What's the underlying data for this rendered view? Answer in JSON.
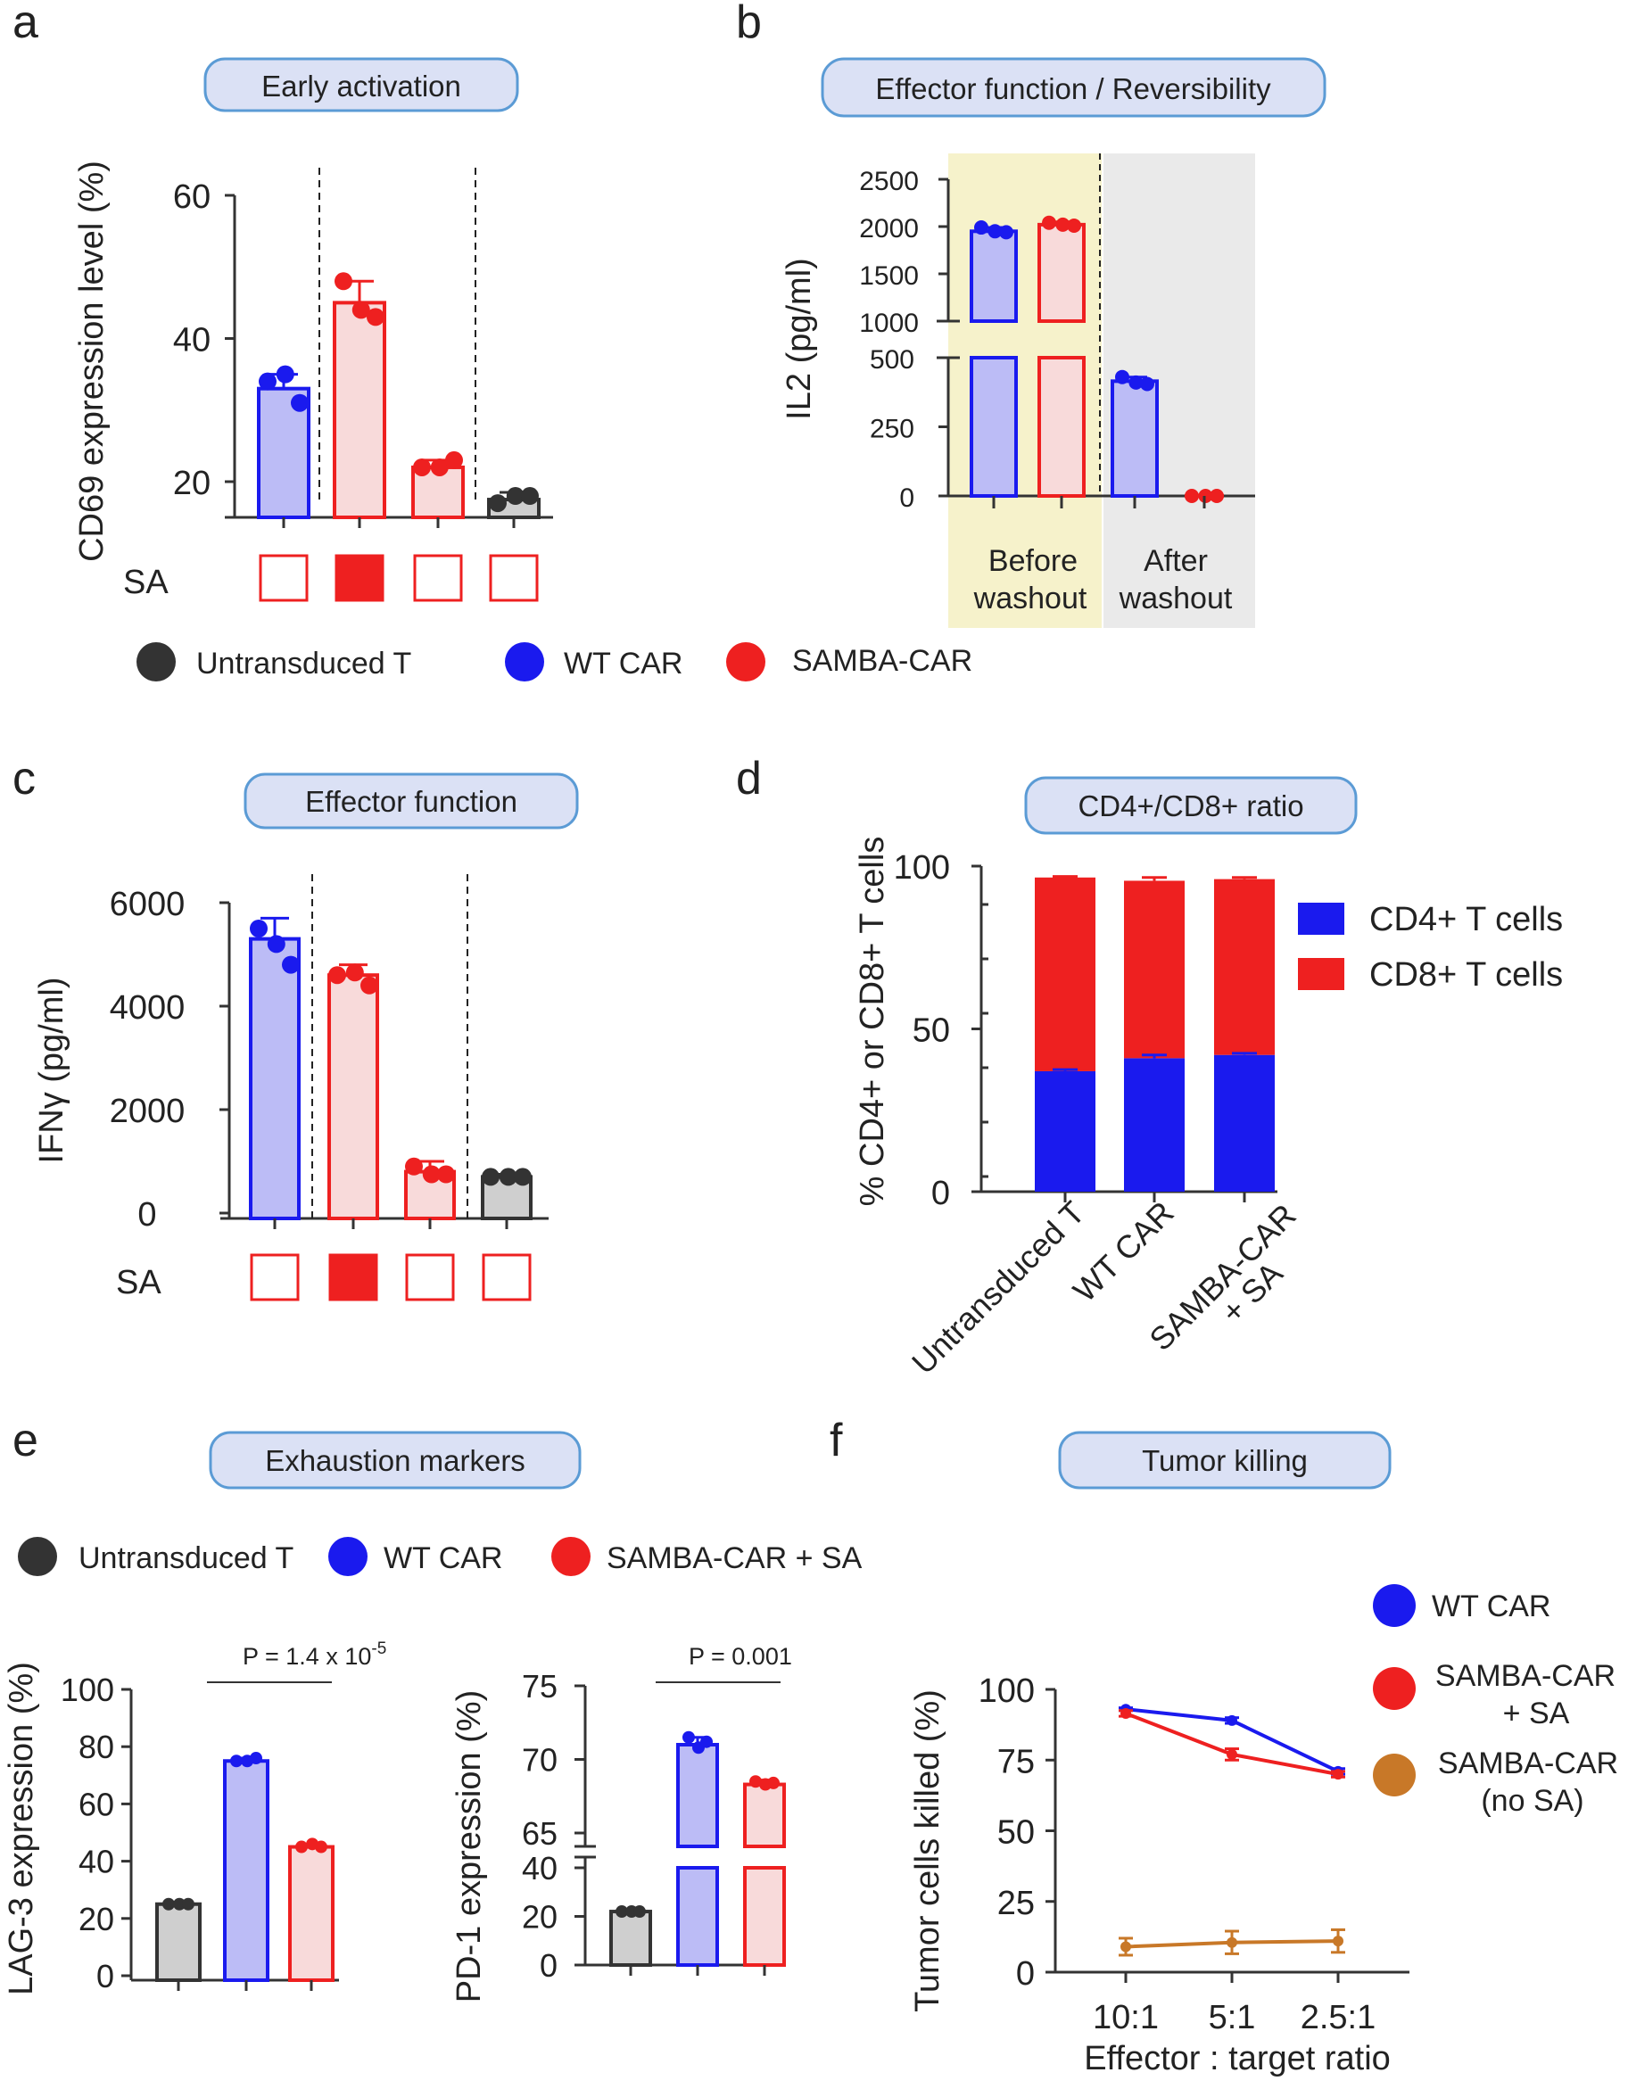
{
  "colors": {
    "blue": "#1a1aee",
    "blue_fill": "#bcbcf6",
    "red": "#ee2020",
    "red_fill": "#f8dada",
    "dark": "#333333",
    "gray_fill": "#cfcfcf",
    "orange": "#c87828",
    "header_fill": "#dbe1f5",
    "header_stroke": "#5b9bd5",
    "before_shade": "#f6f2cb",
    "after_shade": "#eaeaea"
  },
  "panels": {
    "a": {
      "letter": "a",
      "header": "Early activation",
      "ylabel": "CD69 expression level (%)",
      "ticks": [
        "20",
        "40",
        "60"
      ],
      "sa_label": "SA",
      "legend": [
        "Untransduced T",
        "WT CAR",
        "SAMBA-CAR"
      ]
    },
    "b": {
      "letter": "b",
      "header": "Effector function / Reversibility",
      "ylabel": "IL2 (pg/ml)",
      "ticks_upper": [
        "1000",
        "1500",
        "2000",
        "2500"
      ],
      "ticks_lower": [
        "0",
        "250",
        "500"
      ],
      "group1": [
        "Before",
        "washout"
      ],
      "group2": [
        "After",
        "washout"
      ]
    },
    "c": {
      "letter": "c",
      "header": "Effector function",
      "ylabel": "IFNγ (pg/ml)",
      "ticks": [
        "0",
        "2000",
        "4000",
        "6000"
      ],
      "sa_label": "SA"
    },
    "d": {
      "letter": "d",
      "header": "CD4+/CD8+ ratio",
      "ylabel": "% CD4+ or CD8+ T cells",
      "ticks": [
        "0",
        "50",
        "100"
      ],
      "categories": [
        "Untransduced T",
        "WT CAR",
        "SAMBA-CAR",
        "+ SA"
      ],
      "legend": [
        "CD4+ T cells",
        "CD8+ T cells"
      ]
    },
    "e": {
      "letter": "e",
      "header": "Exhaustion markers",
      "legend": [
        "Untransduced T",
        "WT CAR",
        "SAMBA-CAR + SA"
      ],
      "lag3_ylabel": "LAG-3 expression (%)",
      "lag3_ticks": [
        "0",
        "20",
        "40",
        "60",
        "80",
        "100"
      ],
      "lag3_p": "P = 1.4 x 10",
      "lag3_p_exp": "-5",
      "pd1_ylabel": "PD-1 expression (%)",
      "pd1_ticks_upper": [
        "65",
        "70",
        "75"
      ],
      "pd1_ticks_lower": [
        "0",
        "20",
        "40"
      ],
      "pd1_p": "P = 0.001"
    },
    "f": {
      "letter": "f",
      "header": "Tumor killing",
      "ylabel": "Tumor cells killed (%)",
      "xlabel": "Effector : target ratio",
      "ticks": [
        "0",
        "25",
        "50",
        "75",
        "100"
      ],
      "legend": [
        [
          "WT CAR"
        ],
        [
          "SAMBA-CAR",
          "+ SA"
        ],
        [
          "SAMBA-CAR",
          "(no SA)"
        ]
      ]
    }
  },
  "chart_data": [
    {
      "panel": "a",
      "type": "bar",
      "title": "Early activation",
      "ylabel": "CD69 expression level (%)",
      "ylim": [
        15,
        60
      ],
      "categories": [
        "WT CAR",
        "SAMBA-CAR + SA",
        "SAMBA-CAR (no SA)",
        "Untransduced T"
      ],
      "sa": [
        false,
        true,
        false,
        false
      ],
      "values": [
        33,
        45,
        22,
        17.5
      ],
      "errors": [
        2,
        3,
        1,
        1
      ],
      "points": [
        [
          34,
          35,
          31
        ],
        [
          48,
          44,
          43
        ],
        [
          22,
          22,
          23
        ],
        [
          17,
          18,
          18
        ]
      ]
    },
    {
      "panel": "b",
      "type": "bar",
      "title": "Effector function / Reversibility",
      "ylabel": "IL2 (pg/ml)",
      "ylim": [
        0,
        2500
      ],
      "axis_break": [
        500,
        1000
      ],
      "groups": [
        "Before washout",
        "After washout"
      ],
      "categories": [
        "WT CAR (before)",
        "SAMBA-CAR (before)",
        "WT CAR (after)",
        "SAMBA-CAR (after)"
      ],
      "values": [
        1950,
        2020,
        415,
        0
      ],
      "errors": [
        40,
        30,
        15,
        3
      ],
      "points": [
        [
          1990,
          1950,
          1940
        ],
        [
          2040,
          2020,
          2010
        ],
        [
          430,
          410,
          405
        ],
        [
          0,
          0,
          0
        ]
      ]
    },
    {
      "panel": "c",
      "type": "bar",
      "title": "Effector function",
      "ylabel": "IFNγ (pg/ml)",
      "ylim": [
        0,
        6000
      ],
      "categories": [
        "WT CAR",
        "SAMBA-CAR + SA",
        "SAMBA-CAR (no SA)",
        "Untransduced T"
      ],
      "sa": [
        false,
        true,
        false,
        false
      ],
      "values": [
        5300,
        4600,
        800,
        700
      ],
      "errors": [
        400,
        200,
        200,
        50
      ],
      "points": [
        [
          5500,
          5200,
          4800
        ],
        [
          4600,
          4650,
          4400
        ],
        [
          900,
          750,
          750
        ],
        [
          700,
          700,
          700
        ]
      ]
    },
    {
      "panel": "d",
      "type": "bar",
      "stacked": true,
      "title": "CD4+/CD8+ ratio",
      "ylabel": "% CD4+ or CD8+ T cells",
      "ylim": [
        0,
        100
      ],
      "categories": [
        "Untransduced T",
        "WT CAR",
        "SAMBA-CAR + SA"
      ],
      "series": [
        {
          "name": "CD4+ T cells",
          "values": [
            37,
            41,
            42
          ],
          "errors": [
            0.5,
            1,
            0.5
          ]
        },
        {
          "name": "CD8+ T cells",
          "values": [
            59.5,
            54.5,
            54
          ],
          "errors": [
            0.3,
            1,
            0.5
          ]
        }
      ]
    },
    {
      "panel": "e-left",
      "type": "bar",
      "title": "Exhaustion markers",
      "ylabel": "LAG-3 expression (%)",
      "ylim": [
        0,
        100
      ],
      "categories": [
        "Untransduced T",
        "WT CAR",
        "SAMBA-CAR + SA"
      ],
      "values": [
        25,
        75,
        45
      ],
      "errors": [
        0.5,
        1,
        1
      ],
      "points": [
        [
          25,
          25,
          25
        ],
        [
          75,
          75,
          76
        ],
        [
          45,
          46,
          45
        ]
      ],
      "annotation": "P = 1.4 x 10^-5"
    },
    {
      "panel": "e-right",
      "type": "bar",
      "title": "Exhaustion markers",
      "ylabel": "PD-1 expression (%)",
      "ylim": [
        0,
        75
      ],
      "axis_break": [
        40,
        65
      ],
      "categories": [
        "Untransduced T",
        "WT CAR",
        "SAMBA-CAR + SA"
      ],
      "values": [
        22,
        71,
        68.3
      ],
      "errors": [
        0.5,
        0.5,
        0.3
      ],
      "points": [
        [
          22,
          22,
          22
        ],
        [
          71.5,
          70.8,
          71.2
        ],
        [
          68.5,
          68.3,
          68.4
        ]
      ],
      "annotation": "P = 0.001"
    },
    {
      "panel": "f",
      "type": "line",
      "title": "Tumor killing",
      "xlabel": "Effector : target ratio",
      "ylabel": "Tumor cells killed (%)",
      "ylim": [
        0,
        100
      ],
      "x": [
        "10:1",
        "5:1",
        "2.5:1"
      ],
      "series": [
        {
          "name": "WT CAR",
          "values": [
            93,
            89,
            71
          ],
          "errors": [
            0.5,
            1,
            1
          ]
        },
        {
          "name": "SAMBA-CAR + SA",
          "values": [
            91.5,
            77,
            70
          ],
          "errors": [
            1,
            2,
            1
          ]
        },
        {
          "name": "SAMBA-CAR (no SA)",
          "values": [
            9,
            10.5,
            11
          ],
          "errors": [
            3,
            4,
            4
          ]
        }
      ]
    }
  ]
}
